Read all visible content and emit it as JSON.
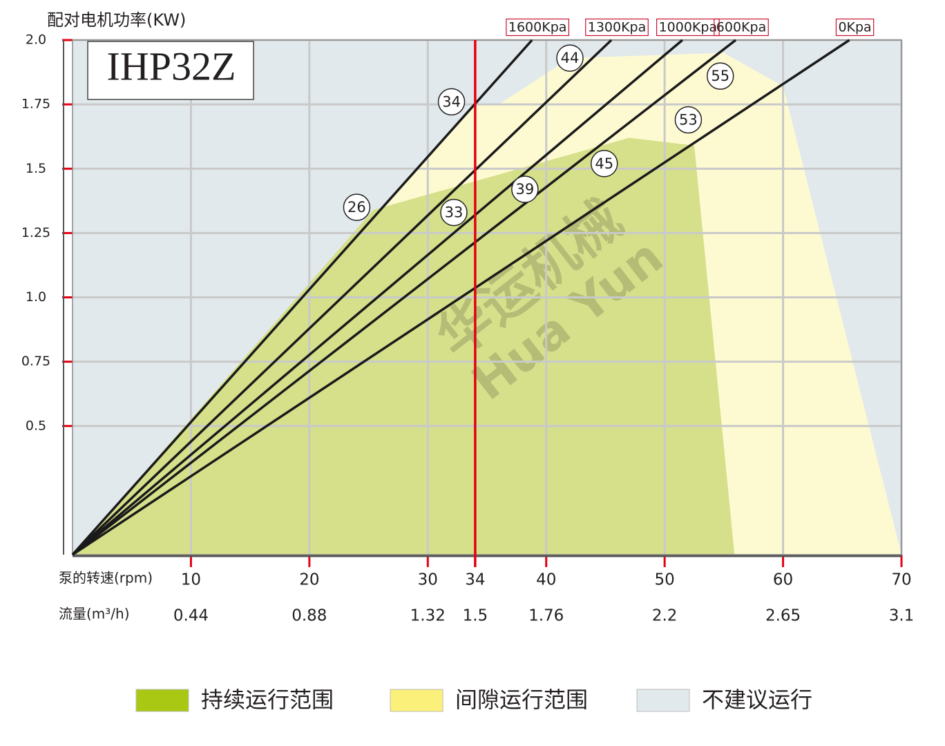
{
  "chart_data": {
    "type": "line",
    "title": "IHP32Z",
    "y_label": "配对电机功率(KW)",
    "x_label": "泵的转速(rpm)",
    "x2_label": "流量(m³/h)",
    "watermark": [
      "华运机械",
      "Hua Yun"
    ],
    "xlim": [
      0,
      70
    ],
    "ylim": [
      0,
      2.0
    ],
    "xticks": [
      10,
      20,
      30,
      34,
      40,
      50,
      60,
      70
    ],
    "x2ticks": [
      {
        "value": 10,
        "label": "0.44"
      },
      {
        "value": 20,
        "label": "0.88"
      },
      {
        "value": 30,
        "label": "1.32"
      },
      {
        "value": 34,
        "label": "1.5"
      },
      {
        "value": 40,
        "label": "1.76"
      },
      {
        "value": 50,
        "label": "2.2"
      },
      {
        "value": 60,
        "label": "2.65"
      },
      {
        "value": 70,
        "label": "3.1"
      }
    ],
    "yticks": [
      0.5,
      0.75,
      {
        "value": 1,
        "label": "1.0"
      },
      1.25,
      1.5,
      1.75,
      {
        "value": 2,
        "label": "2.0"
      }
    ],
    "grid": true,
    "highlight_x": 34,
    "highlight_color": "#e60012",
    "areas": [
      {
        "name": "不建议运行",
        "color": "#e2e9ec",
        "x": [
          0,
          70
        ],
        "values": [
          2.0,
          2.0
        ]
      },
      {
        "name": "间隙运行范围",
        "color": "#fdfad2",
        "x": [
          0,
          34,
          36,
          42,
          55,
          60,
          70
        ],
        "values": [
          0,
          1.75,
          1.75,
          1.93,
          1.95,
          1.82,
          0
        ]
      },
      {
        "name": "持续运行范围",
        "color": "#d6e08a",
        "x": [
          0,
          25.4,
          47,
          52.5,
          55.9
        ],
        "values": [
          0,
          1.34,
          1.62,
          1.59,
          0
        ]
      }
    ],
    "legend_colors": [
      "#a8c814",
      "#fbf07a",
      "#e2e9ec"
    ],
    "series": [
      {
        "name": "1600Kpa",
        "color": "#1a1a1a",
        "x": [
          0,
          38.8
        ],
        "values": [
          0,
          2.0
        ]
      },
      {
        "name": "1300Kpa",
        "color": "#1a1a1a",
        "x": [
          0,
          45.5
        ],
        "values": [
          0,
          2.0
        ]
      },
      {
        "name": "1000Kpa",
        "color": "#1a1a1a",
        "x": [
          0,
          51.5
        ],
        "values": [
          0,
          2.0
        ]
      },
      {
        "name": "600Kpa",
        "color": "#1a1a1a",
        "x": [
          0,
          56
        ],
        "values": [
          0,
          2.0
        ]
      },
      {
        "name": "0Kpa",
        "color": "#1a1a1a",
        "x": [
          0,
          65.6
        ],
        "values": [
          0,
          2.0
        ]
      }
    ],
    "annotations": [
      {
        "text": "26",
        "x": 24,
        "y": 1.35
      },
      {
        "text": "34",
        "x": 32,
        "y": 1.76
      },
      {
        "text": "33",
        "x": 32.2,
        "y": 1.33
      },
      {
        "text": "44",
        "x": 42,
        "y": 1.93
      },
      {
        "text": "39",
        "x": 38.2,
        "y": 1.42
      },
      {
        "text": "45",
        "x": 44.9,
        "y": 1.52
      },
      {
        "text": "55",
        "x": 54.7,
        "y": 1.86
      },
      {
        "text": "53",
        "x": 52,
        "y": 1.69
      }
    ]
  }
}
